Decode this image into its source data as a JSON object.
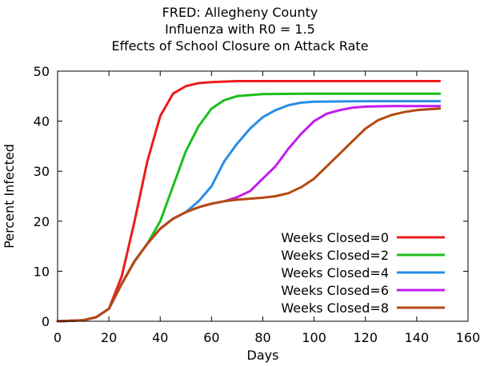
{
  "chart_data": {
    "type": "line",
    "title": [
      "FRED: Allegheny County",
      "Influenza with R0 = 1.5",
      "Effects of School Closure on Attack Rate"
    ],
    "xlabel": "Days",
    "ylabel": "Percent Infected",
    "xlim": [
      0,
      160
    ],
    "ylim": [
      0,
      50
    ],
    "xticks": [
      0,
      20,
      40,
      60,
      80,
      100,
      120,
      140,
      160
    ],
    "yticks": [
      0,
      10,
      20,
      30,
      40,
      50
    ],
    "grid": false,
    "legend_position": "bottom-right",
    "series": [
      {
        "name": "Weeks Closed=0",
        "color": "#ee1c1c",
        "points": [
          [
            0,
            0
          ],
          [
            10,
            0.2
          ],
          [
            15,
            0.8
          ],
          [
            20,
            2.5
          ],
          [
            25,
            9
          ],
          [
            30,
            20
          ],
          [
            35,
            32
          ],
          [
            40,
            41
          ],
          [
            45,
            45.5
          ],
          [
            50,
            47
          ],
          [
            55,
            47.6
          ],
          [
            60,
            47.8
          ],
          [
            70,
            48
          ],
          [
            100,
            48
          ],
          [
            149,
            48
          ]
        ]
      },
      {
        "name": "Weeks Closed=2",
        "color": "#1cbe1c",
        "points": [
          [
            0,
            0
          ],
          [
            10,
            0.2
          ],
          [
            15,
            0.8
          ],
          [
            20,
            2.5
          ],
          [
            25,
            7.5
          ],
          [
            30,
            12
          ],
          [
            35,
            15.5
          ],
          [
            40,
            20
          ],
          [
            45,
            27
          ],
          [
            50,
            34
          ],
          [
            55,
            39
          ],
          [
            60,
            42.5
          ],
          [
            65,
            44.2
          ],
          [
            70,
            45
          ],
          [
            80,
            45.4
          ],
          [
            100,
            45.5
          ],
          [
            149,
            45.5
          ]
        ]
      },
      {
        "name": "Weeks Closed=4",
        "color": "#2a8de8",
        "points": [
          [
            0,
            0
          ],
          [
            10,
            0.2
          ],
          [
            15,
            0.8
          ],
          [
            20,
            2.5
          ],
          [
            25,
            7.5
          ],
          [
            30,
            12
          ],
          [
            35,
            15.5
          ],
          [
            40,
            18.5
          ],
          [
            45,
            20.5
          ],
          [
            50,
            21.8
          ],
          [
            55,
            24
          ],
          [
            60,
            27
          ],
          [
            65,
            32
          ],
          [
            70,
            35.5
          ],
          [
            75,
            38.5
          ],
          [
            80,
            40.8
          ],
          [
            85,
            42.2
          ],
          [
            90,
            43.2
          ],
          [
            95,
            43.7
          ],
          [
            100,
            43.9
          ],
          [
            120,
            44
          ],
          [
            149,
            44
          ]
        ]
      },
      {
        "name": "Weeks Closed=6",
        "color": "#c21cef",
        "points": [
          [
            0,
            0
          ],
          [
            10,
            0.2
          ],
          [
            15,
            0.8
          ],
          [
            20,
            2.5
          ],
          [
            25,
            7.5
          ],
          [
            30,
            12
          ],
          [
            35,
            15.5
          ],
          [
            40,
            18.5
          ],
          [
            45,
            20.5
          ],
          [
            50,
            21.8
          ],
          [
            55,
            22.8
          ],
          [
            60,
            23.5
          ],
          [
            65,
            24
          ],
          [
            70,
            24.8
          ],
          [
            75,
            26
          ],
          [
            80,
            28.5
          ],
          [
            85,
            31
          ],
          [
            90,
            34.5
          ],
          [
            95,
            37.5
          ],
          [
            100,
            40
          ],
          [
            105,
            41.5
          ],
          [
            110,
            42.2
          ],
          [
            115,
            42.7
          ],
          [
            120,
            42.9
          ],
          [
            130,
            43
          ],
          [
            149,
            43
          ]
        ]
      },
      {
        "name": "Weeks Closed=8",
        "color": "#b54a12",
        "points": [
          [
            0,
            0
          ],
          [
            10,
            0.2
          ],
          [
            15,
            0.8
          ],
          [
            20,
            2.5
          ],
          [
            25,
            7.5
          ],
          [
            30,
            12
          ],
          [
            35,
            15.5
          ],
          [
            40,
            18.5
          ],
          [
            45,
            20.5
          ],
          [
            50,
            21.8
          ],
          [
            55,
            22.8
          ],
          [
            60,
            23.5
          ],
          [
            65,
            24
          ],
          [
            70,
            24.3
          ],
          [
            75,
            24.5
          ],
          [
            80,
            24.7
          ],
          [
            85,
            25
          ],
          [
            90,
            25.6
          ],
          [
            95,
            26.8
          ],
          [
            100,
            28.5
          ],
          [
            105,
            31
          ],
          [
            110,
            33.5
          ],
          [
            115,
            36
          ],
          [
            120,
            38.5
          ],
          [
            125,
            40.2
          ],
          [
            130,
            41.2
          ],
          [
            135,
            41.8
          ],
          [
            140,
            42.2
          ],
          [
            145,
            42.4
          ],
          [
            149,
            42.5
          ]
        ]
      }
    ]
  }
}
